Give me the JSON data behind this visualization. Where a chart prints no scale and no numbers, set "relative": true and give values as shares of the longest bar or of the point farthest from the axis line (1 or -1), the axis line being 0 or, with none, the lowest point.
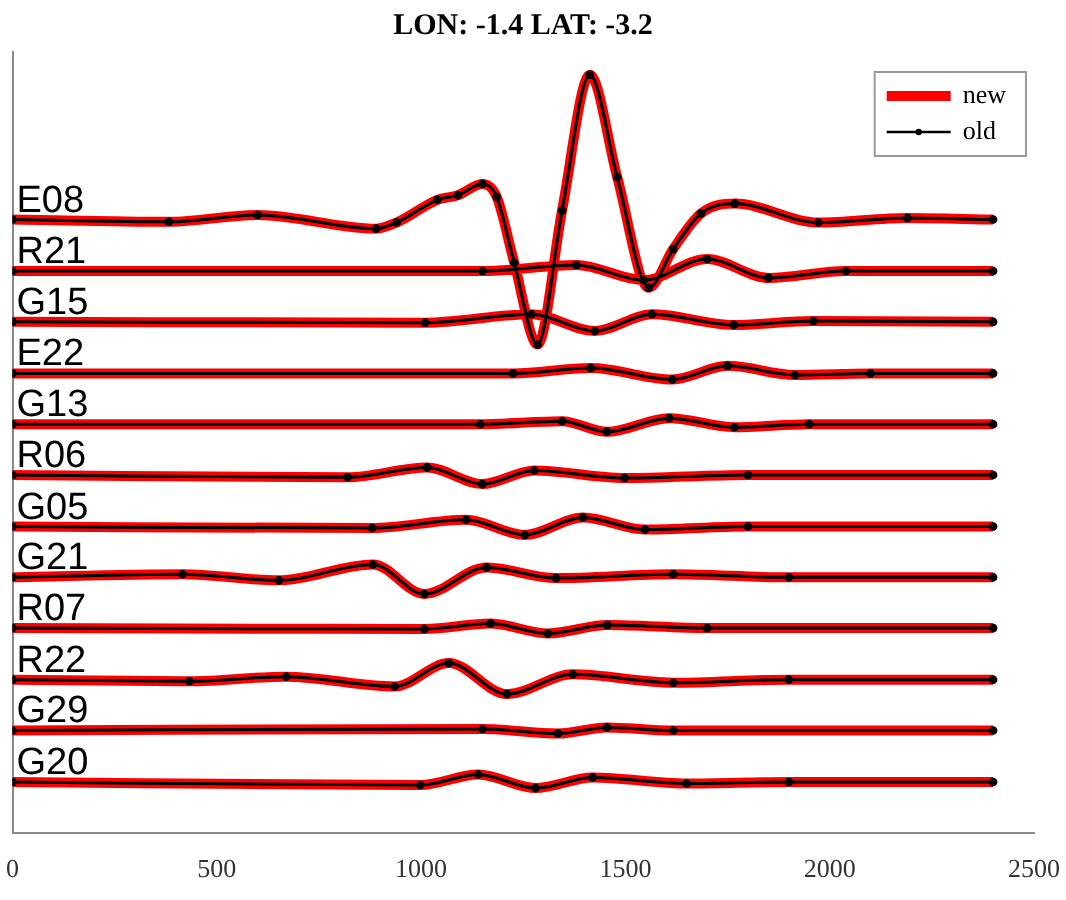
{
  "chart_data": {
    "type": "line",
    "title": "LON: -1.4 LAT: -3.2",
    "relative": true,
    "x": [
      0,
      383,
      600,
      890,
      940,
      1040,
      1090,
      1150,
      1185,
      1228,
      1285,
      1345,
      1413,
      1480,
      1557,
      1617,
      1685,
      1768,
      1972,
      2190,
      2400,
      null,
      0,
      1150,
      1380,
      1545,
      1700,
      1850,
      2040,
      2400,
      null,
      0,
      1010,
      1270,
      1425,
      1565,
      1765,
      1960,
      2400,
      null,
      0,
      1225,
      1415,
      1615,
      1750,
      1915,
      2100,
      2400,
      null,
      0,
      1145,
      1345,
      1455,
      1607,
      1767,
      1950,
      2400,
      null,
      0,
      820,
      1015,
      1150,
      1277,
      1498,
      1800,
      2400,
      null,
      0,
      880,
      1110,
      1254,
      1396,
      1548,
      1800,
      2400,
      null,
      0,
      416,
      652,
      882,
      1008,
      1160,
      1330,
      1617,
      1900,
      2400,
      null,
      0,
      1008,
      1170,
      1310,
      1456,
      1700,
      2400,
      null,
      0,
      433,
      670,
      935,
      1068,
      1210,
      1371,
      1617,
      1900,
      2400,
      null,
      0,
      1150,
      1335,
      1455,
      1617,
      2400,
      null,
      0,
      998,
      1140,
      1280,
      1420,
      1650,
      1900,
      2400
    ],
    "series": [
      {
        "name": "new",
        "color": "#ff0000",
        "marker": "none",
        "values": [
          0.809,
          0.806,
          0.815,
          0.797,
          0.805,
          0.835,
          0.841,
          0.856,
          0.839,
          0.752,
          0.644,
          0.821,
          1,
          0.865,
          0.719,
          0.77,
          0.817,
          0.83,
          0.805,
          0.811,
          0.809,
          null,
          0.741,
          0.741,
          0.749,
          0.729,
          0.757,
          0.732,
          0.741,
          0.741,
          null,
          0.674,
          0.673,
          0.684,
          0.662,
          0.684,
          0.67,
          0.675,
          0.674,
          null,
          0.606,
          0.606,
          0.613,
          0.598,
          0.616,
          0.604,
          0.606,
          0.606,
          null,
          0.539,
          0.539,
          0.543,
          0.529,
          0.547,
          0.535,
          0.539,
          0.539,
          null,
          0.472,
          0.469,
          0.482,
          0.46,
          0.478,
          0.468,
          0.472,
          0.472,
          null,
          0.404,
          0.402,
          0.413,
          0.393,
          0.416,
          0.4,
          0.404,
          0.404,
          null,
          0.337,
          0.341,
          0.333,
          0.354,
          0.315,
          0.35,
          0.336,
          0.341,
          0.337,
          0.337,
          null,
          0.27,
          0.269,
          0.276,
          0.263,
          0.274,
          0.27,
          0.27,
          null,
          0.202,
          0.2,
          0.206,
          0.193,
          0.224,
          0.183,
          0.209,
          0.198,
          0.202,
          0.202,
          null,
          0.135,
          0.137,
          0.131,
          0.139,
          0.135,
          0.135,
          null,
          0.067,
          0.063,
          0.077,
          0.059,
          0.073,
          0.065,
          0.067,
          0.067
        ]
      },
      {
        "name": "old",
        "color": "#000000",
        "marker": "circle",
        "values": [
          0.809,
          0.806,
          0.815,
          0.797,
          0.805,
          0.835,
          0.841,
          0.856,
          0.839,
          0.752,
          0.644,
          0.821,
          1,
          0.865,
          0.719,
          0.77,
          0.817,
          0.83,
          0.805,
          0.811,
          0.809,
          null,
          0.741,
          0.741,
          0.749,
          0.729,
          0.757,
          0.732,
          0.741,
          0.741,
          null,
          0.674,
          0.673,
          0.684,
          0.662,
          0.684,
          0.67,
          0.675,
          0.674,
          null,
          0.606,
          0.606,
          0.613,
          0.598,
          0.616,
          0.604,
          0.606,
          0.606,
          null,
          0.539,
          0.539,
          0.543,
          0.529,
          0.547,
          0.535,
          0.539,
          0.539,
          null,
          0.472,
          0.469,
          0.482,
          0.46,
          0.478,
          0.468,
          0.472,
          0.472,
          null,
          0.404,
          0.402,
          0.413,
          0.393,
          0.416,
          0.4,
          0.404,
          0.404,
          null,
          0.337,
          0.341,
          0.333,
          0.354,
          0.315,
          0.35,
          0.336,
          0.341,
          0.337,
          0.337,
          null,
          0.27,
          0.269,
          0.276,
          0.263,
          0.274,
          0.27,
          0.27,
          null,
          0.202,
          0.2,
          0.206,
          0.193,
          0.224,
          0.183,
          0.209,
          0.198,
          0.202,
          0.202,
          null,
          0.135,
          0.137,
          0.131,
          0.139,
          0.135,
          0.135,
          null,
          0.067,
          0.063,
          0.077,
          0.059,
          0.073,
          0.065,
          0.067,
          0.067
        ]
      }
    ],
    "xlim": [
      0,
      2500
    ],
    "xticks": [
      0,
      500,
      1000,
      1500,
      2000,
      2500
    ],
    "annotations": [
      {
        "text": "E08",
        "y": 0.809
      },
      {
        "text": "R21",
        "y": 0.741
      },
      {
        "text": "G15",
        "y": 0.674
      },
      {
        "text": "E22",
        "y": 0.606
      },
      {
        "text": "G13",
        "y": 0.539
      },
      {
        "text": "R06",
        "y": 0.472
      },
      {
        "text": "G05",
        "y": 0.404
      },
      {
        "text": "G21",
        "y": 0.337
      },
      {
        "text": "R07",
        "y": 0.27
      },
      {
        "text": "R22",
        "y": 0.202
      },
      {
        "text": "G29",
        "y": 0.135
      },
      {
        "text": "G20",
        "y": 0.067
      }
    ],
    "grid": false,
    "legend": "top right",
    "line_style": "solid"
  }
}
